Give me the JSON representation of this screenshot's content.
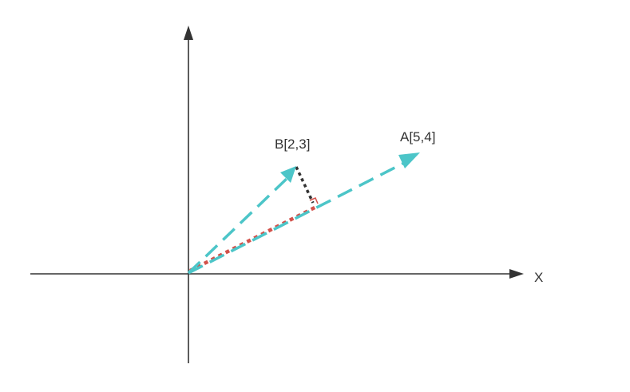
{
  "axes": {
    "x_label": "X",
    "y_label": "",
    "axis_color": "#333333"
  },
  "vectors": {
    "a": {
      "label": "A[5,4]",
      "color": "#4cc5c8",
      "style": "dashed"
    },
    "b": {
      "label": "B[2,3]",
      "color": "#4cc5c8",
      "style": "dashed"
    }
  },
  "projection": {
    "color": "#d2524b",
    "style": "dotted",
    "perpendicular_color": "#333333",
    "right_angle_color": "#d2524b"
  }
}
